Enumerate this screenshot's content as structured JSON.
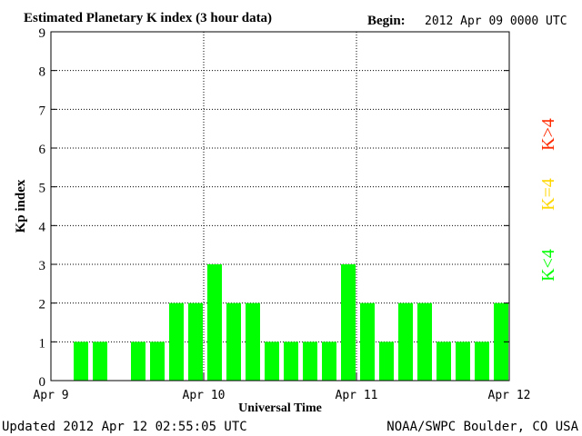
{
  "header": {
    "title": "Estimated Planetary K index (3 hour data)",
    "begin_label": "Begin:",
    "begin_value": "2012 Apr 09 0000 UTC"
  },
  "footer": {
    "updated": "Updated 2012 Apr 12 02:55:05 UTC",
    "credit": "NOAA/SWPC Boulder, CO USA"
  },
  "legend": [
    {
      "label": "K>4",
      "color": "#ff2a00"
    },
    {
      "label": "K=4",
      "color": "#ffd700"
    },
    {
      "label": "K<4",
      "color": "#00ff00"
    }
  ],
  "chart_data": {
    "type": "bar",
    "title": "Estimated Planetary K index (3 hour data)",
    "xlabel": "Universal Time",
    "ylabel": "Kp index",
    "ylim": [
      0,
      9
    ],
    "yticks": [
      "0",
      "1",
      "2",
      "3",
      "4",
      "5",
      "6",
      "7",
      "8",
      "9"
    ],
    "xticks": [
      "Apr 9",
      "Apr 10",
      "Apr 11",
      "Apr 12"
    ],
    "grid": true,
    "bar_color": "#00ff00",
    "values": [
      0,
      1,
      1,
      0,
      1,
      1,
      2,
      2,
      3,
      2,
      2,
      1,
      1,
      1,
      1,
      3,
      2,
      1,
      2,
      2,
      1,
      1,
      1,
      2
    ]
  }
}
